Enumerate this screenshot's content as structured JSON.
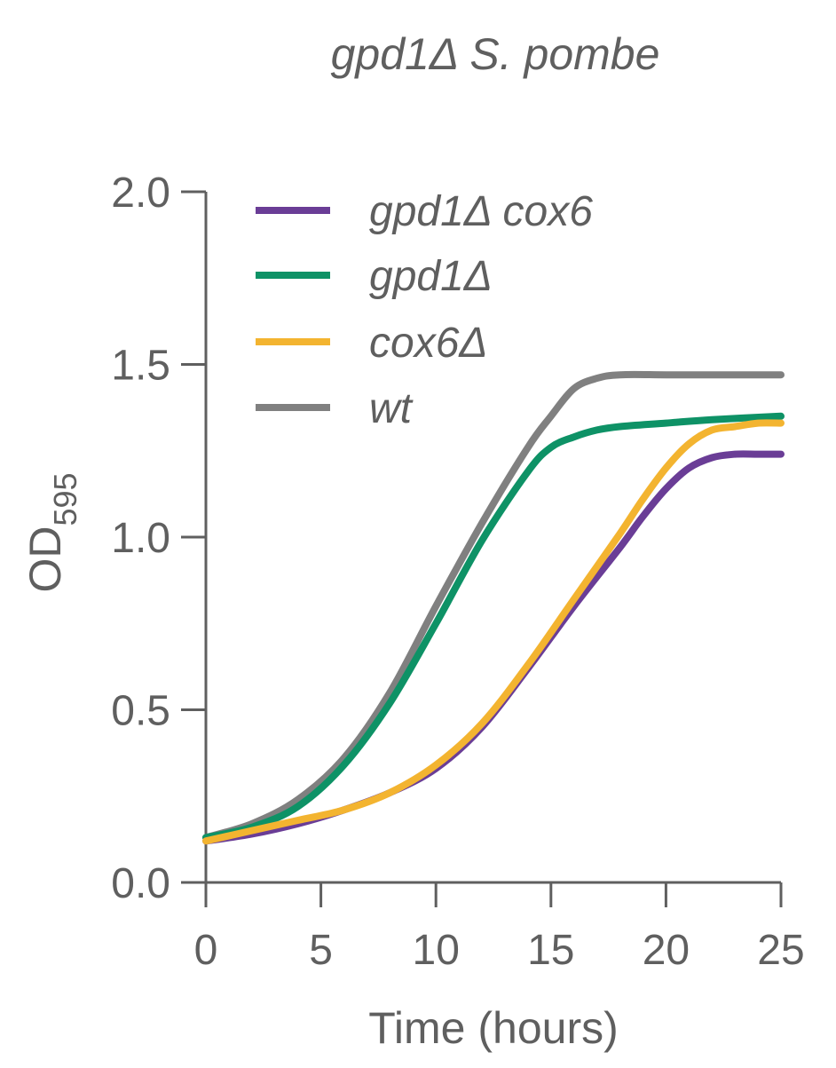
{
  "chart_data": {
    "type": "line",
    "title": "gpd1Δ S. pombe",
    "xlabel": "Time (hours)",
    "ylabel_main": "OD",
    "ylabel_sub": "595",
    "xlim": [
      0,
      25
    ],
    "ylim": [
      0,
      2.0
    ],
    "x_ticks": [
      {
        "value": 0,
        "label": "0"
      },
      {
        "value": 5,
        "label": "5"
      },
      {
        "value": 10,
        "label": "10"
      },
      {
        "value": 15,
        "label": "15"
      },
      {
        "value": 20,
        "label": "20"
      },
      {
        "value": 25,
        "label": "25"
      }
    ],
    "y_ticks": [
      {
        "value": 0.0,
        "label": "0.0"
      },
      {
        "value": 0.5,
        "label": "0.5"
      },
      {
        "value": 1.0,
        "label": "1.0"
      },
      {
        "value": 1.5,
        "label": "1.5"
      },
      {
        "value": 2.0,
        "label": "2.0"
      }
    ],
    "legend_position": "top-left",
    "series": [
      {
        "name": "gpd1Δ cox6",
        "color": "#6a3d96",
        "x": [
          0,
          2,
          4,
          6,
          8,
          10,
          12,
          14,
          16,
          18,
          19,
          20,
          21,
          22,
          23,
          24,
          25
        ],
        "y": [
          0.12,
          0.14,
          0.17,
          0.21,
          0.26,
          0.33,
          0.45,
          0.62,
          0.8,
          0.97,
          1.06,
          1.14,
          1.2,
          1.23,
          1.24,
          1.24,
          1.24
        ]
      },
      {
        "name": "gpd1Δ",
        "color": "#0e9266",
        "x": [
          0,
          2,
          4,
          6,
          8,
          10,
          12,
          14,
          15,
          16,
          17,
          18,
          20,
          22,
          25
        ],
        "y": [
          0.13,
          0.16,
          0.22,
          0.34,
          0.52,
          0.75,
          0.99,
          1.19,
          1.26,
          1.29,
          1.31,
          1.32,
          1.33,
          1.34,
          1.35
        ]
      },
      {
        "name": "cox6Δ",
        "color": "#f3b430",
        "x": [
          0,
          2,
          4,
          6,
          8,
          10,
          12,
          14,
          16,
          18,
          19,
          20,
          21,
          22,
          23,
          24,
          25
        ],
        "y": [
          0.12,
          0.15,
          0.18,
          0.21,
          0.26,
          0.34,
          0.46,
          0.63,
          0.82,
          1.01,
          1.11,
          1.2,
          1.27,
          1.31,
          1.32,
          1.33,
          1.33
        ]
      },
      {
        "name": "wt",
        "color": "#808080",
        "x": [
          0,
          2,
          4,
          6,
          8,
          10,
          12,
          14,
          15,
          16,
          17,
          18,
          20,
          22,
          25
        ],
        "y": [
          0.13,
          0.17,
          0.24,
          0.36,
          0.55,
          0.8,
          1.04,
          1.26,
          1.35,
          1.43,
          1.46,
          1.47,
          1.47,
          1.47,
          1.47
        ]
      }
    ]
  }
}
